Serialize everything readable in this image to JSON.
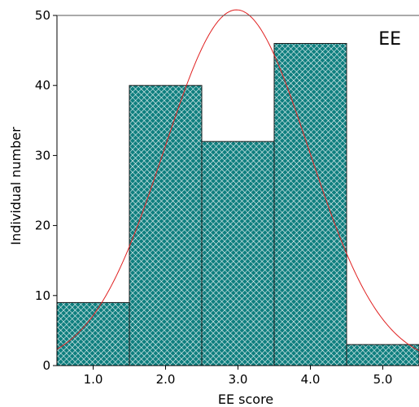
{
  "chart_data": {
    "type": "bar",
    "panel_label": "EE",
    "xlabel": "EE score",
    "ylabel": "Individual number",
    "bins": [
      {
        "start": 0.5,
        "end": 1.5,
        "value": 9
      },
      {
        "start": 1.5,
        "end": 2.5,
        "value": 40
      },
      {
        "start": 2.5,
        "end": 3.5,
        "value": 32
      },
      {
        "start": 3.5,
        "end": 4.5,
        "value": 46
      },
      {
        "start": 4.5,
        "end": 5.5,
        "value": 3
      }
    ],
    "x_ticks": [
      {
        "value": 1.0,
        "label": "1.0"
      },
      {
        "value": 2.0,
        "label": "2.0"
      },
      {
        "value": 3.0,
        "label": "3.0"
      },
      {
        "value": 4.0,
        "label": "4.0"
      },
      {
        "value": 5.0,
        "label": "5.0"
      }
    ],
    "y_ticks": [
      {
        "value": 0,
        "label": "0"
      },
      {
        "value": 10,
        "label": "10"
      },
      {
        "value": 20,
        "label": "20"
      },
      {
        "value": 30,
        "label": "30"
      },
      {
        "value": 40,
        "label": "40"
      },
      {
        "value": 50,
        "label": "50"
      }
    ],
    "xlim": [
      0.5,
      5.5
    ],
    "ylim": [
      0,
      50
    ],
    "normal_curve": {
      "mean": 2.98,
      "sd": 1.0,
      "peak": 50.8
    },
    "colors": {
      "bar_fill": "#0f7f7f",
      "bar_hatch": "#ffffff",
      "bar_edge": "#1a1a1a",
      "curve": "#e02020",
      "axis": "#000000"
    },
    "grid": false,
    "legend": "none"
  }
}
